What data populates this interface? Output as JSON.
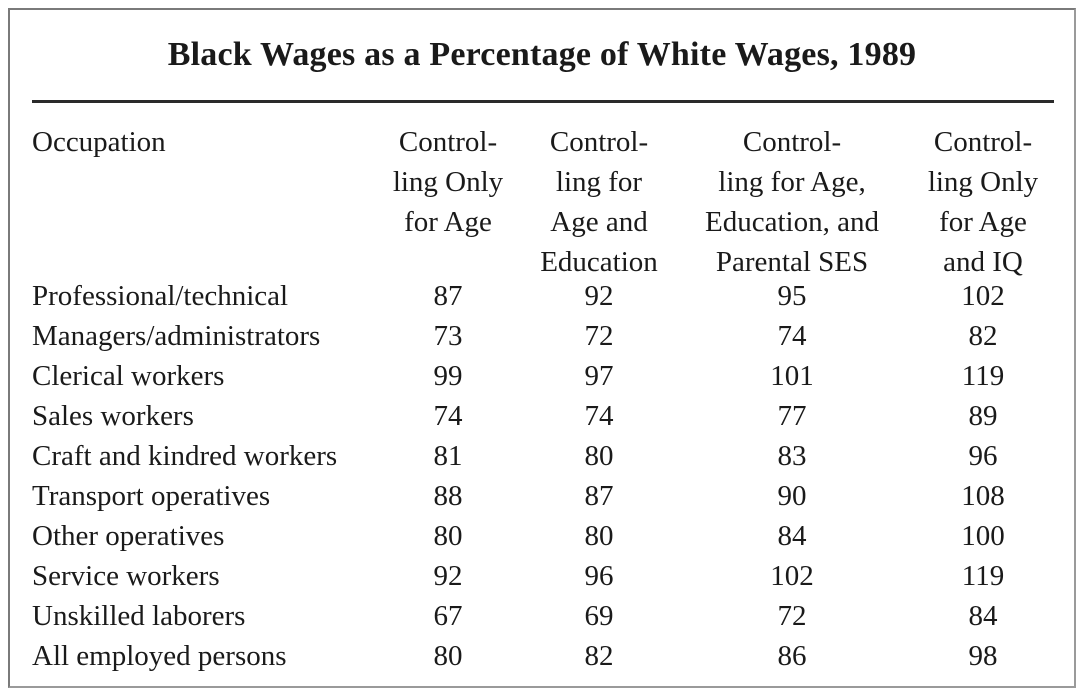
{
  "title": "Black Wages as a Percentage of White Wages, 1989",
  "columns": {
    "occupation": "Occupation",
    "c1": [
      "Control-",
      "ling Only",
      "for Age"
    ],
    "c2": [
      "Control-",
      "ling for",
      "Age and",
      "Education"
    ],
    "c3": [
      "Control-",
      "ling for Age,",
      "Education, and",
      "Parental SES"
    ],
    "c4": [
      "Control-",
      "ling Only",
      "for Age",
      "and IQ"
    ]
  },
  "rows": [
    {
      "occupation": "Professional/technical",
      "age": "87",
      "age_edu": "92",
      "age_edu_ses": "95",
      "age_iq": "102"
    },
    {
      "occupation": "Managers/administrators",
      "age": "73",
      "age_edu": "72",
      "age_edu_ses": "74",
      "age_iq": "82"
    },
    {
      "occupation": "Clerical workers",
      "age": "99",
      "age_edu": "97",
      "age_edu_ses": "101",
      "age_iq": "119"
    },
    {
      "occupation": "Sales workers",
      "age": "74",
      "age_edu": "74",
      "age_edu_ses": "77",
      "age_iq": "89"
    },
    {
      "occupation": "Craft and kindred workers",
      "age": "81",
      "age_edu": "80",
      "age_edu_ses": "83",
      "age_iq": "96"
    },
    {
      "occupation": "Transport operatives",
      "age": "88",
      "age_edu": "87",
      "age_edu_ses": "90",
      "age_iq": "108"
    },
    {
      "occupation": "Other operatives",
      "age": "80",
      "age_edu": "80",
      "age_edu_ses": "84",
      "age_iq": "100"
    },
    {
      "occupation": "Service workers",
      "age": "92",
      "age_edu": "96",
      "age_edu_ses": "102",
      "age_iq": "119"
    },
    {
      "occupation": "Unskilled laborers",
      "age": "67",
      "age_edu": "69",
      "age_edu_ses": "72",
      "age_iq": "84"
    },
    {
      "occupation": "All employed persons",
      "age": "80",
      "age_edu": "82",
      "age_edu_ses": "86",
      "age_iq": "98"
    }
  ]
}
